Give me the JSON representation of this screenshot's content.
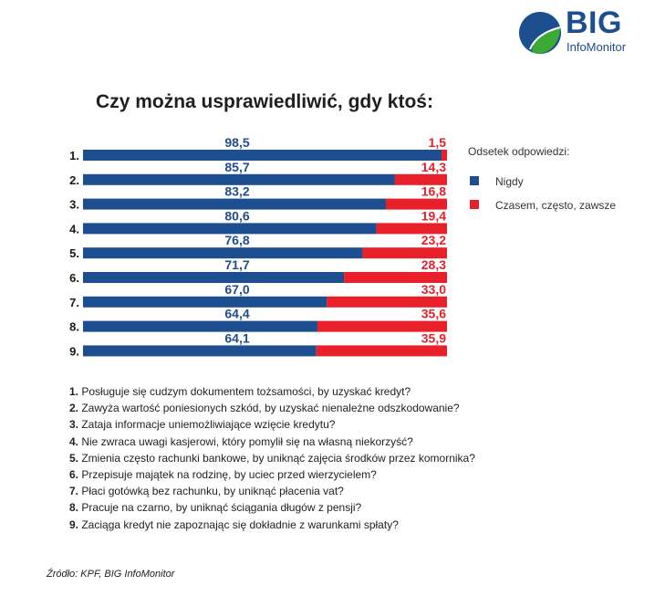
{
  "logo": {
    "name": "BIG",
    "subtitle": "InfoMonitor",
    "colors": {
      "blue": "#1d4e8f",
      "green": "#3aa935"
    }
  },
  "chart_data": {
    "type": "bar",
    "stacked": true,
    "orientation": "horizontal",
    "title": "Czy można usprawiedliwić, gdy ktoś:",
    "categories": [
      "1.",
      "2.",
      "3.",
      "4.",
      "5.",
      "6.",
      "7.",
      "8.",
      "9."
    ],
    "series": [
      {
        "name": "Nigdy",
        "color": "#1d4e8f",
        "values": [
          98.5,
          85.7,
          83.2,
          80.6,
          76.8,
          71.7,
          67.0,
          64.4,
          64.1
        ],
        "labels": [
          "98,5",
          "85,7",
          "83,2",
          "80,6",
          "76,8",
          "71,7",
          "67,0",
          "64,4",
          "64,1"
        ]
      },
      {
        "name": "Czasem, często, zawsze",
        "color": "#e8202a",
        "values": [
          1.5,
          14.3,
          16.8,
          19.4,
          23.2,
          28.3,
          33.0,
          35.6,
          35.9
        ],
        "labels": [
          "1,5",
          "14,3",
          "16,8",
          "19,4",
          "23,2",
          "28,3",
          "33,0",
          "35,6",
          "35,9"
        ]
      }
    ],
    "xlim": [
      0,
      100
    ],
    "legend_title": "Odsetek odpowiedzi:",
    "legend_position": "right"
  },
  "notes": [
    {
      "num": "1.",
      "text": "Posługuje się cudzym dokumentem tożsamości, by uzyskać kredyt?"
    },
    {
      "num": "2.",
      "text": "Zawyża wartość poniesionych szkód, by uzyskać nienależne odszkodowanie?"
    },
    {
      "num": "3.",
      "text": "Zataja informacje uniemożliwiające wzięcie kredytu?"
    },
    {
      "num": "4.",
      "text": "Nie zwraca uwagi kasjerowi, który pomylił się na własną niekorzyść?"
    },
    {
      "num": "5.",
      "text": "Zmienia często rachunki bankowe, by uniknąć zajęcia środków przez komornika?"
    },
    {
      "num": "6.",
      "text": "Przepisuje majątek na rodzinę, by uciec przed wierzycielem?"
    },
    {
      "num": "7.",
      "text": "Płaci gotówką bez rachunku, by uniknąć płacenia vat?"
    },
    {
      "num": "8.",
      "text": "Pracuje na czarno, by uniknąć ściągania długów z pensji?"
    },
    {
      "num": "9.",
      "text": "Zaciąga kredyt nie zapoznając się dokładnie z warunkami spłaty?"
    }
  ],
  "source": "Źródło: KPF, BIG InfoMonitor"
}
